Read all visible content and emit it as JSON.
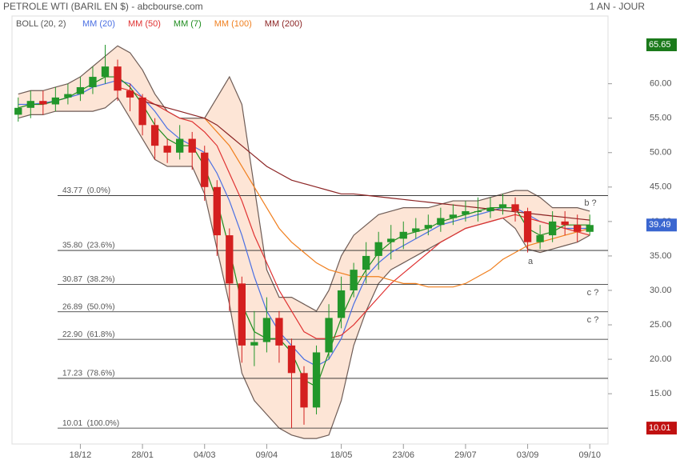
{
  "chart_data": {
    "type": "candlestick",
    "title": "PETROLE WTI (BARIL EN $) - abcbourse.com",
    "period": "1 AN - JOUR",
    "categories": [
      null,
      null,
      null,
      null,
      null,
      "18/12",
      null,
      null,
      null,
      null,
      "28/01",
      null,
      null,
      null,
      null,
      "04/03",
      null,
      null,
      null,
      null,
      "09/04",
      null,
      null,
      null,
      null,
      null,
      "18/05",
      null,
      null,
      null,
      null,
      "23/06",
      null,
      null,
      null,
      null,
      "29/07",
      null,
      null,
      null,
      null,
      "03/09",
      null,
      null,
      null,
      null,
      "09/10"
    ],
    "open": [
      55.5,
      56.5,
      57.5,
      57,
      58,
      58.5,
      59.5,
      61,
      62.5,
      59,
      58,
      54,
      51,
      50,
      52,
      50,
      45,
      38,
      31,
      22,
      22.5,
      26,
      22,
      18,
      13,
      21,
      26,
      30,
      33,
      35,
      37,
      37.5,
      38.5,
      39,
      39.5,
      40.5,
      41,
      41.5,
      41.5,
      42,
      42.5,
      41.5,
      37,
      38,
      40,
      39.5,
      38.5
    ],
    "high": [
      58,
      59,
      59,
      59.5,
      60,
      61,
      62.5,
      65.65,
      63.5,
      60,
      58.5,
      55,
      52,
      54,
      53,
      51,
      46,
      39,
      32,
      27,
      29,
      27,
      23,
      19,
      22,
      28,
      32,
      34,
      37,
      38.5,
      39.5,
      40,
      40.5,
      41,
      42,
      42.5,
      43,
      43.5,
      43.5,
      44,
      43.5,
      42,
      39.5,
      41.5,
      41.5,
      41,
      41
    ],
    "low": [
      54.5,
      55,
      55.5,
      56,
      57,
      57.5,
      58.5,
      60,
      57.5,
      56,
      52.5,
      49,
      48.5,
      49,
      47.5,
      43,
      35,
      27,
      19.5,
      19,
      21,
      19.5,
      10.01,
      10.5,
      12,
      20,
      24.5,
      29,
      31,
      33,
      34.5,
      36,
      37.5,
      38,
      38.5,
      39.5,
      40,
      40,
      40.5,
      41,
      40,
      35.5,
      36,
      37,
      38,
      37,
      38
    ],
    "close": [
      56.5,
      57.5,
      57,
      58,
      58.5,
      59.5,
      61,
      62.5,
      59,
      58,
      54,
      51,
      50,
      52,
      50,
      45,
      38,
      31,
      22,
      22.5,
      26,
      22,
      18,
      13,
      21,
      26,
      30,
      33,
      35,
      37,
      37.5,
      38.5,
      39,
      39.5,
      40.5,
      41,
      41.5,
      41.5,
      42,
      42.5,
      41.5,
      37,
      38,
      40,
      39.5,
      38.5,
      39.49
    ],
    "up_color": "#22962a",
    "down_color": "#d41f1f",
    "bands": {
      "name": "BOLL (20, 2)",
      "color": "#6e5c56",
      "fill": "#fde5d6",
      "upper": [
        58.5,
        59,
        59,
        59.5,
        60,
        61,
        62.5,
        64,
        65.5,
        64.5,
        62,
        58.5,
        56,
        55,
        55,
        55,
        58,
        61,
        57,
        45,
        33,
        29,
        29,
        28,
        27,
        30,
        35,
        38,
        39.5,
        41,
        41.5,
        42,
        42,
        42,
        42.5,
        43,
        43,
        43,
        43.5,
        44,
        44.5,
        44.5,
        43.5,
        42,
        42,
        42,
        41.5
      ],
      "lower": [
        55,
        55.5,
        55.5,
        56,
        56,
        56,
        56,
        56.5,
        58,
        55,
        52,
        49,
        48,
        48,
        48,
        44,
        36,
        28,
        18,
        14,
        12,
        10,
        9,
        8.5,
        8.5,
        9,
        14,
        22,
        27,
        31,
        33,
        34,
        35,
        36,
        37,
        38,
        39,
        39.5,
        40,
        40.5,
        39,
        36,
        35.5,
        36,
        36.5,
        37,
        38
      ]
    },
    "series": [
      {
        "name": "MM (20)",
        "color": "#4a6fe3",
        "values": [
          57,
          57,
          57.2,
          57.5,
          58,
          58.5,
          59.5,
          60,
          60.5,
          60,
          58,
          56,
          53.5,
          52,
          51,
          50,
          47,
          43,
          38,
          32,
          27,
          24,
          22,
          20,
          19,
          20,
          23,
          28,
          32,
          34,
          35.5,
          36.5,
          37.5,
          38.5,
          39.5,
          40,
          40.5,
          41,
          41.5,
          42,
          42,
          41,
          40,
          39.5,
          39,
          39,
          39
        ]
      },
      {
        "name": "MM (50)",
        "color": "#e03232",
        "values": [
          null,
          null,
          null,
          null,
          null,
          null,
          null,
          null,
          59.5,
          59,
          58,
          57,
          56,
          55,
          54.5,
          53,
          51,
          47,
          43,
          38,
          34,
          30,
          27,
          24,
          23,
          23,
          23.5,
          25,
          27,
          29,
          31,
          32.5,
          34,
          35.5,
          37,
          38,
          39,
          39.5,
          40,
          40.5,
          41,
          40.5,
          40,
          39.5,
          39,
          38.5,
          38
        ]
      },
      {
        "name": "MM (7)",
        "color": "#1e8c1e",
        "values": [
          56.5,
          57,
          57,
          57.5,
          58,
          59,
          60,
          61,
          61,
          59.5,
          57,
          54,
          52,
          51,
          51,
          48,
          43,
          36,
          28,
          24,
          23,
          23,
          21,
          17,
          16,
          21,
          26,
          30,
          33,
          35.5,
          37,
          38,
          38.5,
          39,
          40,
          40.5,
          41,
          41.5,
          42,
          42,
          42,
          39,
          38,
          38.5,
          39.5,
          39.5,
          39.5
        ]
      },
      {
        "name": "MM (100)",
        "color": "#f07f1e",
        "values": [
          null,
          null,
          null,
          null,
          null,
          null,
          null,
          null,
          null,
          null,
          null,
          null,
          null,
          null,
          null,
          55,
          53,
          51,
          48,
          45,
          42,
          39,
          37,
          35.5,
          34,
          33,
          32.5,
          32,
          32,
          32,
          31.5,
          31,
          31,
          30.5,
          30.5,
          30.5,
          31,
          32,
          33,
          34.5,
          35.5,
          36.5,
          37,
          37.5,
          38,
          38.5,
          39
        ]
      },
      {
        "name": "MM (200)",
        "color": "#8b2323",
        "values": [
          null,
          null,
          null,
          null,
          null,
          null,
          null,
          null,
          null,
          null,
          57.5,
          57,
          56.5,
          56,
          55.5,
          55,
          54,
          52.5,
          51,
          49.5,
          48,
          47,
          46,
          45.5,
          45,
          44.5,
          44,
          44,
          43.8,
          43.6,
          43.4,
          43.2,
          43,
          42.8,
          42.6,
          42.4,
          42.2,
          42,
          41.8,
          41.6,
          41.4,
          41.2,
          41,
          40.8,
          40.6,
          40.4,
          40.2
        ]
      }
    ],
    "ylim": [
      7.7,
      69.6
    ],
    "yticks": [
      {
        "value": 15,
        "label": "15.00"
      },
      {
        "value": 20,
        "label": "20.00"
      },
      {
        "value": 25,
        "label": "25.00"
      },
      {
        "value": 30,
        "label": "30.00"
      },
      {
        "value": 35,
        "label": "35.00"
      },
      {
        "value": 40,
        "label": "40.00"
      },
      {
        "value": 45,
        "label": "45.00"
      },
      {
        "value": 50,
        "label": "50.00"
      },
      {
        "value": 55,
        "label": "55.00"
      },
      {
        "value": 60,
        "label": "60.00"
      }
    ],
    "fib": [
      {
        "value": 43.77,
        "label": "43.77  (0.0%)"
      },
      {
        "value": 35.8,
        "label": "35.80  (23.6%)"
      },
      {
        "value": 30.87,
        "label": "30.87  (38.2%)"
      },
      {
        "value": 26.89,
        "label": "26.89  (50.0%)"
      },
      {
        "value": 22.9,
        "label": "22.90  (61.8%)"
      },
      {
        "value": 17.23,
        "label": "17.23  (78.6%)"
      },
      {
        "value": 10.01,
        "label": "10.01  (100.0%)"
      }
    ],
    "annotations": [
      "b ?",
      "a",
      "c ?",
      "c ?"
    ]
  }
}
